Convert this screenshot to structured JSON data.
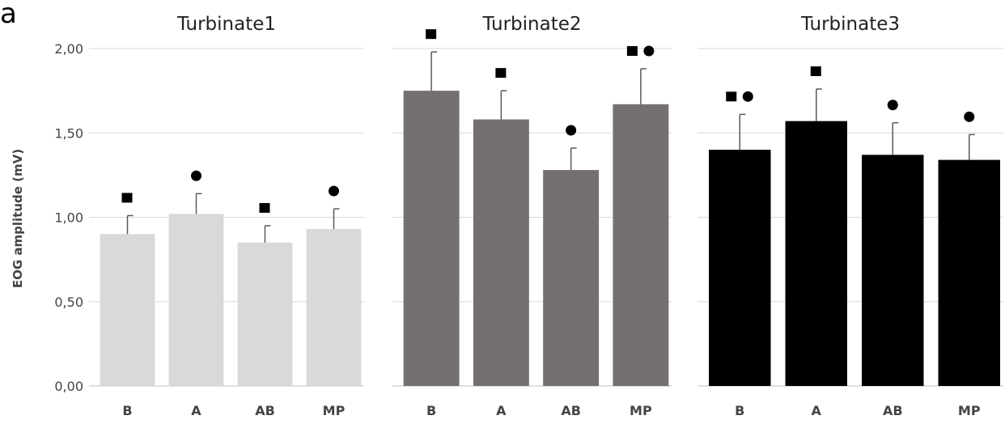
{
  "panel_label": "a",
  "chart_data": {
    "type": "bar",
    "ylabel": "EOG amplitude (mV)",
    "ylim": [
      0,
      2
    ],
    "yticks": [
      "0,00",
      "0,50",
      "1,00",
      "1,50",
      "2,00"
    ],
    "ytick_values": [
      0,
      0.5,
      1,
      1.5,
      2
    ],
    "grid": true,
    "categories": [
      "B",
      "A",
      "AB",
      "MP"
    ],
    "panels": [
      {
        "title": "Turbinate1",
        "color": "#d9d9d9",
        "values": [
          0.9,
          1.02,
          0.85,
          0.93
        ],
        "errors": [
          0.11,
          0.12,
          0.1,
          0.12
        ],
        "markers": [
          [
            "square"
          ],
          [
            "circle"
          ],
          [
            "square"
          ],
          [
            "circle"
          ]
        ]
      },
      {
        "title": "Turbinate2",
        "color": "#757070",
        "values": [
          1.75,
          1.58,
          1.28,
          1.67
        ],
        "errors": [
          0.23,
          0.17,
          0.13,
          0.21
        ],
        "markers": [
          [
            "square"
          ],
          [
            "square"
          ],
          [
            "circle"
          ],
          [
            "square",
            "circle"
          ]
        ]
      },
      {
        "title": "Turbinate3",
        "color": "#000000",
        "values": [
          1.4,
          1.57,
          1.37,
          1.34
        ],
        "errors": [
          0.21,
          0.19,
          0.19,
          0.15
        ],
        "markers": [
          [
            "square",
            "circle"
          ],
          [
            "square"
          ],
          [
            "circle"
          ],
          [
            "circle"
          ]
        ]
      }
    ]
  }
}
